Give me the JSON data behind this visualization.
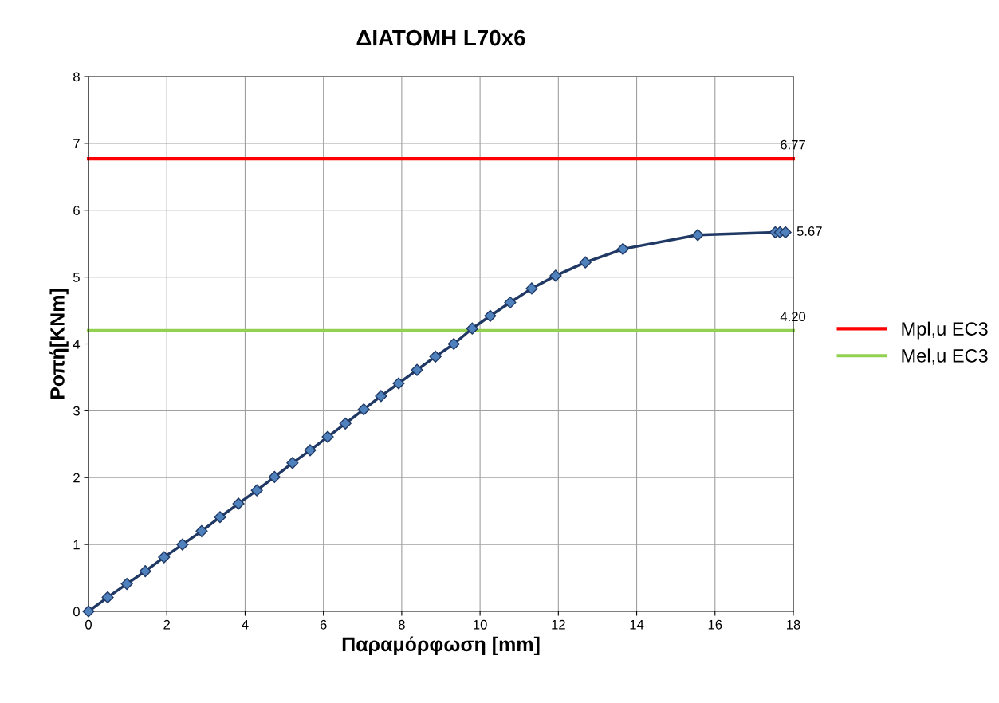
{
  "chart_data": {
    "type": "line",
    "title": "ΔΙΑΤΟΜΗ L70x6",
    "xlabel": "Παραμόρφωση [mm]",
    "ylabel": "Ροπή[KNm]",
    "xlim": [
      0,
      18
    ],
    "xticks": [
      0,
      2,
      4,
      6,
      8,
      10,
      12,
      14,
      16,
      18
    ],
    "ylim": [
      0,
      8
    ],
    "yticks": [
      0,
      1,
      2,
      3,
      4,
      5,
      6,
      7,
      8
    ],
    "grid": true,
    "legend": "right",
    "series": [
      {
        "color": "#1f3864",
        "marker": "diamond",
        "x": [
          0,
          0.49,
          0.98,
          1.45,
          1.93,
          2.4,
          2.89,
          3.36,
          3.83,
          4.3,
          4.75,
          5.21,
          5.66,
          6.11,
          6.56,
          7.03,
          7.47,
          7.92,
          8.39,
          8.86,
          9.33,
          9.8,
          10.26,
          10.77,
          11.32,
          11.93,
          12.69,
          13.65,
          15.56,
          17.54,
          17.66,
          17.8
        ],
        "values": [
          0,
          0.21,
          0.41,
          0.6,
          0.81,
          1.0,
          1.2,
          1.41,
          1.61,
          1.81,
          2.01,
          2.22,
          2.41,
          2.61,
          2.81,
          3.02,
          3.22,
          3.41,
          3.61,
          3.81,
          4.0,
          4.23,
          4.42,
          4.62,
          4.83,
          5.02,
          5.22,
          5.42,
          5.63,
          5.67,
          5.67,
          5.67
        ],
        "value_labels": [
          null,
          null,
          null,
          null,
          null,
          null,
          null,
          null,
          null,
          null,
          null,
          null,
          null,
          null,
          null,
          null,
          null,
          null,
          null,
          null,
          null,
          null,
          null,
          null,
          null,
          null,
          null,
          null,
          null,
          null,
          null,
          "5.67"
        ]
      },
      {
        "name": "Mpl,u EC3",
        "color": "#ff0000",
        "x": [
          0,
          18
        ],
        "values": [
          6.77,
          6.77
        ],
        "value_labels": [
          null,
          "6.77"
        ]
      },
      {
        "name": "Mel,u EC3",
        "color": "#92d050",
        "x": [
          0,
          18
        ],
        "values": [
          4.2,
          4.2
        ],
        "value_labels": [
          null,
          "4.20"
        ]
      }
    ]
  }
}
